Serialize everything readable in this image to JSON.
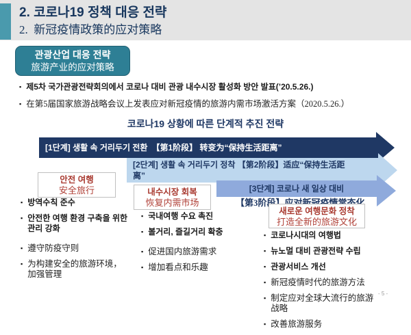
{
  "colors": {
    "navy": "#1F3864",
    "header_bg": "#E4E4E4",
    "accent_teal_bar": "#4A9AAD",
    "badge_teal": "#2E7F95",
    "stage1_navy": "#1F3864",
    "stage2_light_blue": "#BDD7EE",
    "stage3_medium_blue": "#8FAADC",
    "pillar_title_red": "#A8392F"
  },
  "bullet_marker": "▪",
  "header": {
    "title_ko": "2. 코로나19 정책 대응 전략",
    "title_zh": "2.  新冠疫情政策的应对策略"
  },
  "badge": {
    "line1": "관광산업 대응 전략",
    "line2": "旅游产业的应对策略"
  },
  "intro_bullets": [
    {
      "lang": "ko",
      "text": "제5차 국가관광전략회의에서 코로나 대비 관광 내수시장 활성화 방안 발표(’20.5.26.)"
    },
    {
      "lang": "zh",
      "text": "在第5届国家旅游战略会议上发表应对新冠疫情的旅游内需市场激活方案（2020.5.26.）"
    }
  ],
  "section_heading": "코로나19 상황에 따른 단계적 추진 전략",
  "stages": [
    {
      "label": "[1단계] 생활 속 거리두기 전환　【第1阶段】 转变为“保持生活距离”"
    },
    {
      "label": "[2단계] 생활 속 거리두기 정착 【第2阶段】适应“保持生活距\n离”"
    },
    {
      "label_ko": "[3단계] 코로나 새 일상 대비",
      "label_zh": "【第3阶段】应对新冠疫情常态化"
    }
  ],
  "columns": [
    {
      "box_ko": "안전 여행",
      "box_zh": "安全旅行",
      "items": [
        {
          "lang": "ko",
          "text": "방역수칙 준수"
        },
        {
          "lang": "ko",
          "text": "안전한 여행 환경 구축을 위한\n관리 강화"
        },
        {
          "lang": "zh",
          "text": "遵守防疫守则"
        },
        {
          "lang": "zh",
          "text": "为构建安全的旅游环境，\n加强管理"
        }
      ]
    },
    {
      "box_ko": "내수시장 회복",
      "box_zh": "恢复内需市场",
      "items": [
        {
          "lang": "ko",
          "text": "국내여행 수요 촉진"
        },
        {
          "lang": "ko",
          "text": "볼거리, 즐길거리 확충"
        },
        {
          "lang": "zh",
          "text": "促进国内旅游需求"
        },
        {
          "lang": "zh",
          "text": "增加看点和乐趣"
        }
      ]
    },
    {
      "box_ko": "새로운 여행문화 정착",
      "box_zh": "打造全新的旅游文化",
      "items": [
        {
          "lang": "ko",
          "text": "코로나시대의 여행법"
        },
        {
          "lang": "ko",
          "text": "뉴노멀 대비 관광전략 수립"
        },
        {
          "lang": "ko",
          "text": "관광서비스 개선"
        },
        {
          "lang": "zh",
          "text": "新冠疫情时代的旅游方法"
        },
        {
          "lang": "zh",
          "text": "制定应对全球大流行的旅游\n战略"
        },
        {
          "lang": "zh",
          "text": "改善旅游服务"
        }
      ]
    }
  ],
  "page_number": "- 5 -"
}
